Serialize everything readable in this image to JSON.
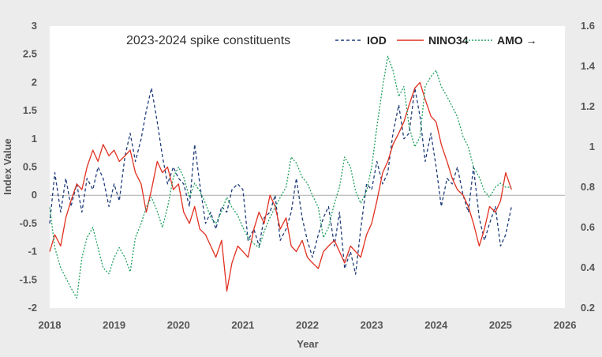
{
  "chart_data": {
    "type": "line",
    "title": "2023-2024 spike constituents",
    "xlabel": "Year",
    "ylabel": "Index Value",
    "xlim": [
      2018,
      2026
    ],
    "ylim": [
      -2,
      3
    ],
    "y2lim": [
      0.2,
      1.6
    ],
    "x_ticks": [
      "2018",
      "2019",
      "2020",
      "2021",
      "2022",
      "2023",
      "2024",
      "2025",
      "2026"
    ],
    "y_ticks": [
      "-2",
      "-1.5",
      "-1",
      "-0.5",
      "0",
      "0.5",
      "1",
      "1.5",
      "2",
      "2.5",
      "3"
    ],
    "y2_ticks": [
      "0.2",
      "0.4",
      "0.6",
      "0.8",
      "1",
      "1.2",
      "1.4",
      "1.6"
    ],
    "legend": [
      "IOD",
      "NINO34",
      "AMO →"
    ],
    "series": [
      {
        "name": "IOD",
        "axis": "left",
        "color": "#1f3d7a",
        "style": "dashed",
        "x": [
          2018.0,
          2018.08,
          2018.17,
          2018.25,
          2018.33,
          2018.42,
          2018.5,
          2018.58,
          2018.67,
          2018.75,
          2018.83,
          2018.92,
          2019.0,
          2019.08,
          2019.17,
          2019.25,
          2019.33,
          2019.42,
          2019.5,
          2019.58,
          2019.67,
          2019.75,
          2019.83,
          2019.92,
          2020.0,
          2020.08,
          2020.17,
          2020.25,
          2020.33,
          2020.42,
          2020.5,
          2020.58,
          2020.67,
          2020.75,
          2020.83,
          2020.92,
          2021.0,
          2021.08,
          2021.17,
          2021.25,
          2021.33,
          2021.42,
          2021.5,
          2021.58,
          2021.67,
          2021.75,
          2021.83,
          2021.92,
          2022.0,
          2022.08,
          2022.17,
          2022.25,
          2022.33,
          2022.42,
          2022.5,
          2022.58,
          2022.67,
          2022.75,
          2022.83,
          2022.92,
          2023.0,
          2023.08,
          2023.17,
          2023.25,
          2023.33,
          2023.42,
          2023.5,
          2023.58,
          2023.67,
          2023.75,
          2023.83,
          2023.92,
          2024.0,
          2024.08,
          2024.17,
          2024.25,
          2024.33,
          2024.42,
          2024.5,
          2024.58,
          2024.67,
          2024.75,
          2024.83,
          2024.92,
          2025.0,
          2025.08,
          2025.17
        ],
        "values": [
          -0.5,
          0.4,
          -0.3,
          0.3,
          -0.2,
          0.2,
          -0.3,
          0.3,
          0.1,
          0.5,
          0.3,
          -0.2,
          0.2,
          -0.1,
          0.7,
          1.1,
          0.6,
          1.0,
          1.5,
          1.9,
          1.3,
          0.7,
          0.2,
          0.5,
          0.3,
          0.2,
          -0.2,
          0.9,
          0.2,
          -0.5,
          -0.3,
          -0.6,
          -0.2,
          -0.3,
          0.1,
          0.2,
          0.1,
          -0.8,
          -0.6,
          -0.9,
          -0.4,
          -0.3,
          0.0,
          -0.8,
          -0.6,
          -0.3,
          0.3,
          -0.4,
          -0.8,
          -1.1,
          -0.7,
          -0.4,
          -0.2,
          -0.9,
          -0.3,
          -1.3,
          -1.0,
          -1.4,
          -0.6,
          0.2,
          0.1,
          0.6,
          0.2,
          0.4,
          1.1,
          1.6,
          1.0,
          1.1,
          1.9,
          1.4,
          0.6,
          1.1,
          0.5,
          -0.2,
          0.3,
          0.2,
          0.5,
          0.0,
          -0.3,
          0.5,
          -0.4,
          -0.8,
          -0.5,
          -0.2,
          -0.9,
          -0.7,
          -0.2
        ]
      },
      {
        "name": "NINO34",
        "axis": "left",
        "color": "#e03020",
        "style": "solid",
        "x": [
          2018.0,
          2018.08,
          2018.17,
          2018.25,
          2018.33,
          2018.42,
          2018.5,
          2018.58,
          2018.67,
          2018.75,
          2018.83,
          2018.92,
          2019.0,
          2019.08,
          2019.17,
          2019.25,
          2019.33,
          2019.42,
          2019.5,
          2019.58,
          2019.67,
          2019.75,
          2019.83,
          2019.92,
          2020.0,
          2020.08,
          2020.17,
          2020.25,
          2020.33,
          2020.42,
          2020.5,
          2020.58,
          2020.67,
          2020.75,
          2020.83,
          2020.92,
          2021.0,
          2021.08,
          2021.17,
          2021.25,
          2021.33,
          2021.42,
          2021.5,
          2021.58,
          2021.67,
          2021.75,
          2021.83,
          2021.92,
          2022.0,
          2022.08,
          2022.17,
          2022.25,
          2022.33,
          2022.42,
          2022.5,
          2022.58,
          2022.67,
          2022.75,
          2022.83,
          2022.92,
          2023.0,
          2023.08,
          2023.17,
          2023.25,
          2023.33,
          2023.42,
          2023.5,
          2023.58,
          2023.67,
          2023.75,
          2023.83,
          2023.92,
          2024.0,
          2024.08,
          2024.17,
          2024.25,
          2024.33,
          2024.42,
          2024.5,
          2024.58,
          2024.67,
          2024.75,
          2024.83,
          2024.92,
          2025.0,
          2025.08,
          2025.17
        ],
        "values": [
          -1.0,
          -0.7,
          -0.9,
          -0.4,
          -0.1,
          0.2,
          0.1,
          0.5,
          0.8,
          0.6,
          0.9,
          0.7,
          0.8,
          0.6,
          0.7,
          0.8,
          0.4,
          0.2,
          -0.3,
          0.1,
          0.6,
          0.4,
          0.5,
          0.1,
          0.2,
          -0.3,
          -0.5,
          -0.2,
          -0.6,
          -0.7,
          -0.9,
          -1.1,
          -0.8,
          -1.7,
          -1.2,
          -0.9,
          -1.0,
          -1.1,
          -0.6,
          -0.3,
          -0.5,
          0.0,
          -0.2,
          -0.6,
          -0.4,
          -0.9,
          -1.0,
          -0.8,
          -1.1,
          -1.2,
          -1.3,
          -1.0,
          -0.9,
          -0.8,
          -1.0,
          -1.2,
          -0.9,
          -1.0,
          -1.1,
          -0.7,
          -0.5,
          -0.1,
          0.4,
          0.6,
          0.9,
          1.1,
          1.3,
          1.6,
          1.9,
          2.0,
          1.7,
          1.4,
          1.3,
          0.9,
          0.6,
          0.3,
          0.1,
          0.0,
          -0.2,
          -0.5,
          -0.9,
          -0.6,
          -0.2,
          -0.3,
          -0.1,
          0.4,
          0.1
        ]
      },
      {
        "name": "AMO →",
        "axis": "right",
        "color": "#20a060",
        "style": "dotted",
        "x": [
          2018.0,
          2018.08,
          2018.17,
          2018.25,
          2018.33,
          2018.42,
          2018.5,
          2018.58,
          2018.67,
          2018.75,
          2018.83,
          2018.92,
          2019.0,
          2019.08,
          2019.17,
          2019.25,
          2019.33,
          2019.42,
          2019.5,
          2019.58,
          2019.67,
          2019.75,
          2019.83,
          2019.92,
          2020.0,
          2020.08,
          2020.17,
          2020.25,
          2020.33,
          2020.42,
          2020.5,
          2020.58,
          2020.67,
          2020.75,
          2020.83,
          2020.92,
          2021.0,
          2021.08,
          2021.17,
          2021.25,
          2021.33,
          2021.42,
          2021.5,
          2021.58,
          2021.67,
          2021.75,
          2021.83,
          2021.92,
          2022.0,
          2022.08,
          2022.17,
          2022.25,
          2022.33,
          2022.42,
          2022.5,
          2022.58,
          2022.67,
          2022.75,
          2022.83,
          2022.92,
          2023.0,
          2023.08,
          2023.17,
          2023.25,
          2023.33,
          2023.42,
          2023.5,
          2023.58,
          2023.67,
          2023.75,
          2023.83,
          2023.92,
          2024.0,
          2024.08,
          2024.17,
          2024.25,
          2024.33,
          2024.42,
          2024.5,
          2024.58,
          2024.67,
          2024.75,
          2024.83,
          2024.92,
          2025.0,
          2025.08,
          2025.17
        ],
        "values": [
          0.7,
          0.5,
          0.4,
          0.35,
          0.3,
          0.25,
          0.45,
          0.55,
          0.6,
          0.5,
          0.4,
          0.37,
          0.45,
          0.5,
          0.45,
          0.38,
          0.55,
          0.62,
          0.7,
          0.75,
          0.68,
          0.6,
          0.7,
          0.85,
          0.9,
          0.85,
          0.75,
          0.82,
          0.78,
          0.72,
          0.65,
          0.62,
          0.68,
          0.75,
          0.7,
          0.66,
          0.6,
          0.55,
          0.52,
          0.5,
          0.58,
          0.65,
          0.7,
          0.75,
          0.8,
          0.95,
          0.92,
          0.85,
          0.82,
          0.76,
          0.7,
          0.55,
          0.6,
          0.72,
          0.8,
          0.95,
          0.9,
          0.78,
          0.72,
          0.78,
          0.9,
          1.1,
          1.3,
          1.45,
          1.38,
          1.25,
          1.3,
          1.1,
          1.0,
          1.05,
          1.3,
          1.35,
          1.38,
          1.3,
          1.25,
          1.2,
          1.15,
          1.05,
          1.0,
          0.9,
          0.85,
          0.78,
          0.75,
          0.8,
          0.82,
          0.8,
          0.8
        ]
      }
    ]
  }
}
